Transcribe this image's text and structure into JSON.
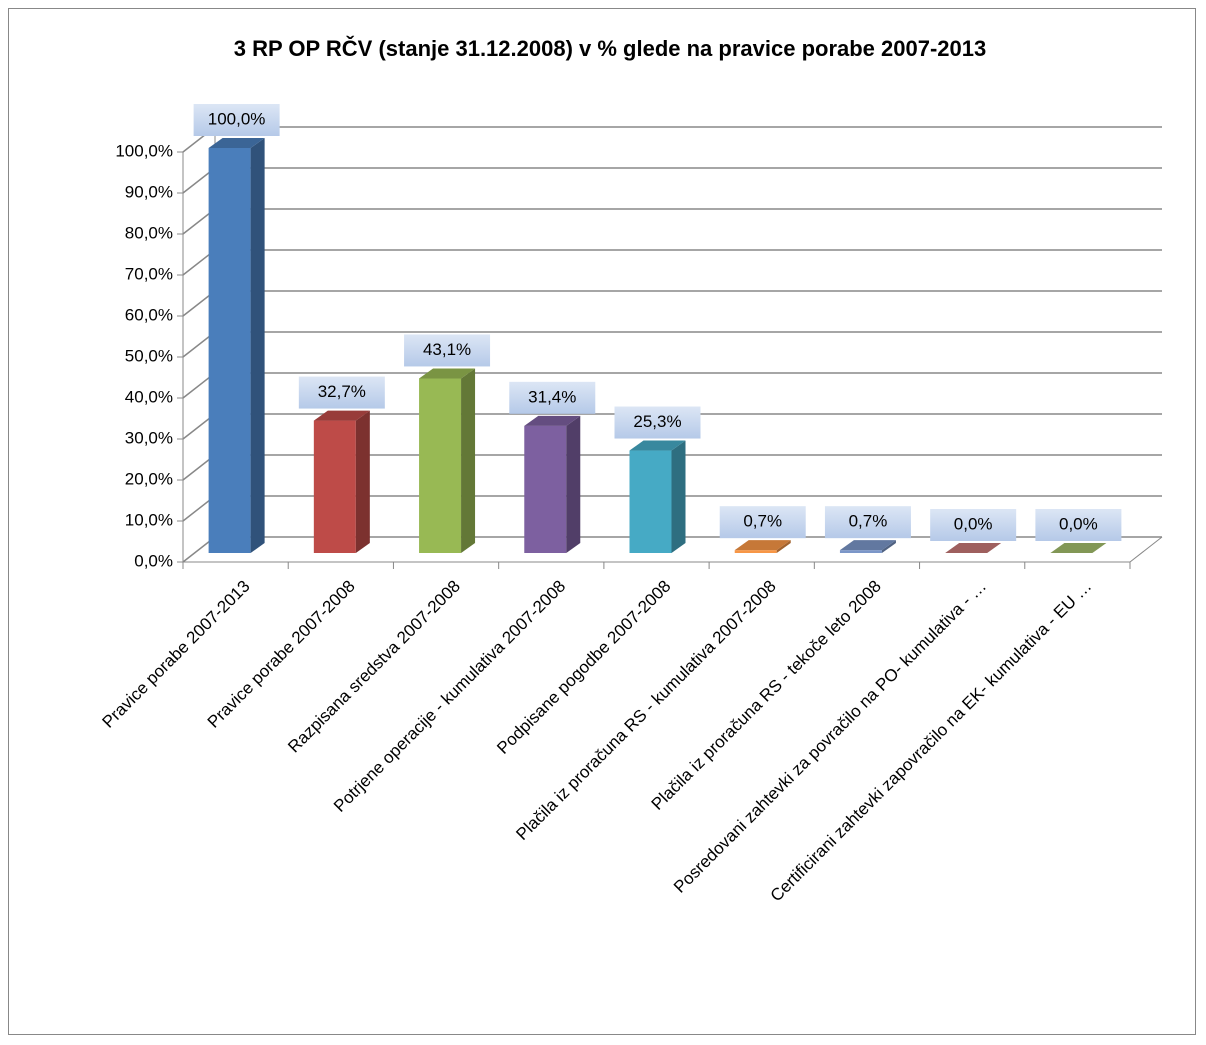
{
  "chart_data": {
    "type": "bar3d",
    "title": "3 RP OP RČV (stanje  31.12.2008) v % glede na pravice porabe 2007-2013",
    "categories": [
      "Pravice porabe 2007-2013",
      "Pravice porabe 2007-2008",
      "Razpisana sredstva 2007-2008",
      "Potrjene operacije - kumulativa 2007-2008",
      "Podpisane pogodbe 2007-2008",
      "Plačila iz proračuna RS - kumulativa 2007-2008",
      "Plačila iz proračuna RS - tekoče leto 2008",
      "Posredovani zahtevki za povračilo na PO- kumulativa - …",
      "Certificirani zahtevki zapovračilo na EK- kumulativa - EU …"
    ],
    "values": [
      100.0,
      32.7,
      43.1,
      31.4,
      25.3,
      0.7,
      0.7,
      0.0,
      0.0
    ],
    "value_labels": [
      "100,0%",
      "32,7%",
      "43,1%",
      "31,4%",
      "25,3%",
      "0,7%",
      "0,7%",
      "0,0%",
      "0,0%"
    ],
    "colors": [
      "#4a7ebb",
      "#be4b48",
      "#98b954",
      "#7d60a0",
      "#46aac5",
      "#f79646",
      "#7b96c8",
      "#c57775",
      "#a3bd6c"
    ],
    "ylim": [
      0,
      100
    ],
    "yticks": [
      {
        "value": 0,
        "label": "0,0%"
      },
      {
        "value": 10,
        "label": "10,0%"
      },
      {
        "value": 20,
        "label": "20,0%"
      },
      {
        "value": 30,
        "label": "30,0%"
      },
      {
        "value": 40,
        "label": "40,0%"
      },
      {
        "value": 50,
        "label": "50,0%"
      },
      {
        "value": 60,
        "label": "60,0%"
      },
      {
        "value": 70,
        "label": "70,0%"
      },
      {
        "value": 80,
        "label": "80,0%"
      },
      {
        "value": 90,
        "label": "90,0%"
      },
      {
        "value": 100,
        "label": "100,0%"
      }
    ],
    "grid": true
  }
}
